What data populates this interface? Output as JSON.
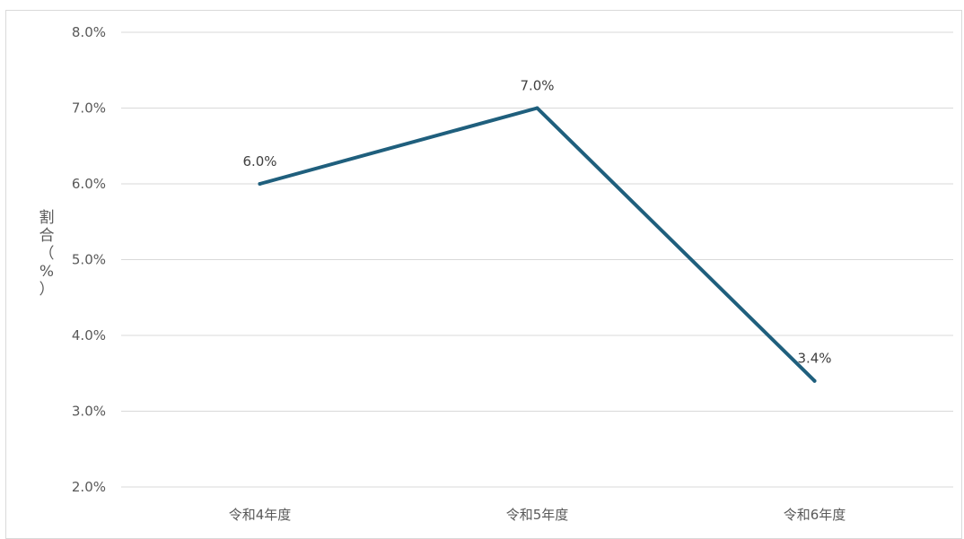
{
  "chart_data": {
    "type": "line",
    "title": "",
    "xlabel": "",
    "ylabel": "割合（%）",
    "ylabel_chars": [
      "割",
      "合",
      "（",
      "%",
      "）"
    ],
    "categories": [
      "令和4年度",
      "令和5年度",
      "令和6年度"
    ],
    "series": [
      {
        "values": [
          6.0,
          7.0,
          3.4
        ],
        "data_labels": [
          "6.0%",
          "7.0%",
          "3.4%"
        ],
        "color": "#1f5f7d"
      }
    ],
    "ylim": [
      2.0,
      8.0
    ],
    "yticks": [
      2.0,
      3.0,
      4.0,
      5.0,
      6.0,
      7.0,
      8.0
    ],
    "ytick_labels": [
      "2.0%",
      "3.0%",
      "4.0%",
      "5.0%",
      "6.0%",
      "7.0%",
      "8.0%"
    ],
    "grid": true,
    "gridline_color": "#d9d9d9",
    "legend": "none"
  }
}
